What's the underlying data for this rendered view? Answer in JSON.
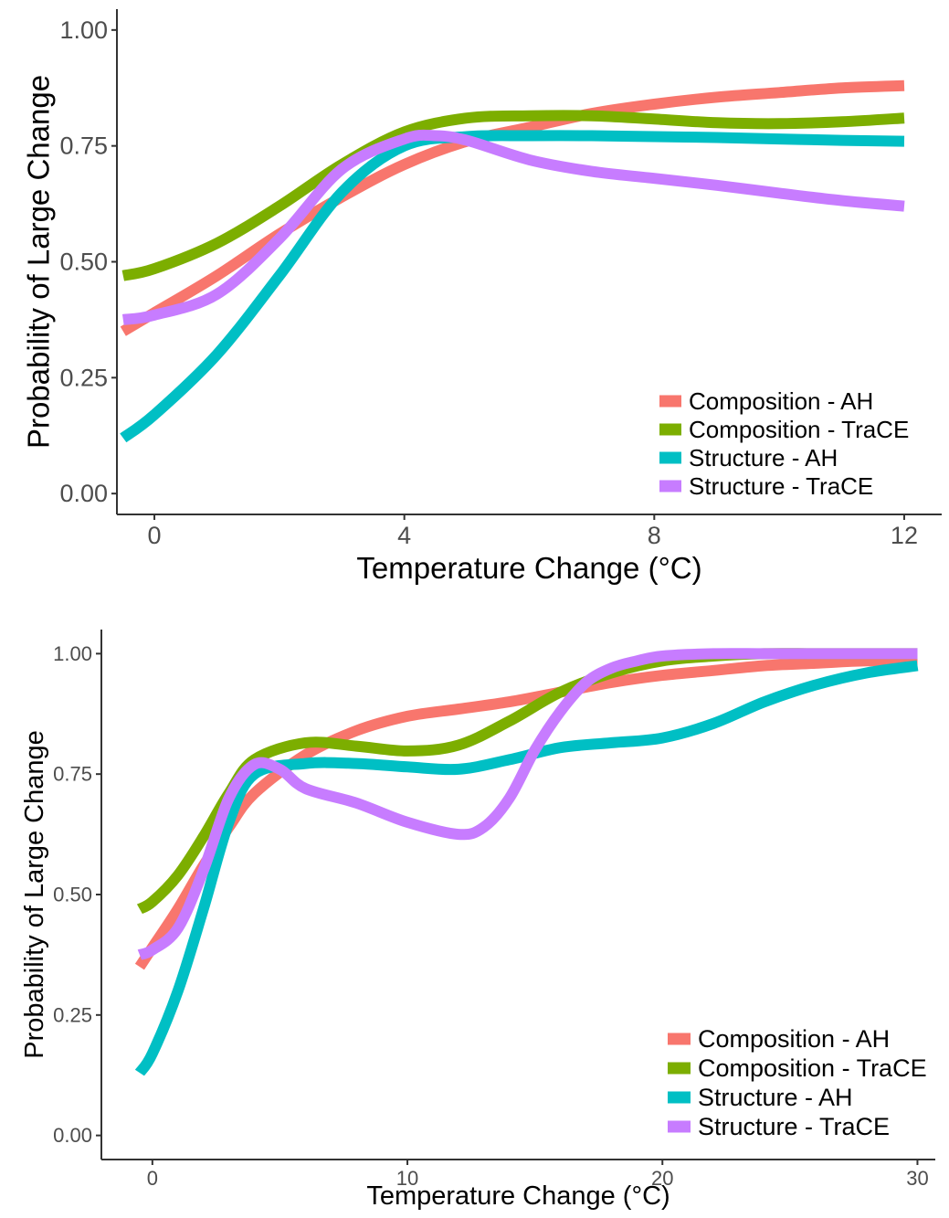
{
  "colors": {
    "composition_ah": "#F8766D",
    "composition_trace": "#7CAE00",
    "structure_ah": "#00BFC4",
    "structure_trace": "#C77CFF"
  },
  "chart_data": [
    {
      "type": "line",
      "xlabel": "Temperature Change (°C)",
      "ylabel": "Probability of Large Change",
      "xlim": [
        -0.6,
        12.6
      ],
      "ylim": [
        -0.045,
        1.045
      ],
      "xticks": [
        0,
        4,
        8,
        12
      ],
      "xtick_labels": [
        "0",
        "4",
        "8",
        "12"
      ],
      "yticks": [
        0,
        0.25,
        0.5,
        0.75,
        1
      ],
      "ytick_labels": [
        "0.00",
        "0.25",
        "0.50",
        "0.75",
        "1.00"
      ],
      "grid": false,
      "legend_position": "bottom-right",
      "series": [
        {
          "name": "Composition - AH",
          "color": "#F8766D",
          "x": [
            -0.5,
            0,
            1,
            2,
            3,
            4,
            5,
            6,
            7,
            8,
            9,
            10,
            11,
            12
          ],
          "y": [
            0.35,
            0.39,
            0.47,
            0.56,
            0.64,
            0.71,
            0.76,
            0.79,
            0.82,
            0.84,
            0.855,
            0.865,
            0.875,
            0.88
          ]
        },
        {
          "name": "Composition - TraCE",
          "color": "#7CAE00",
          "x": [
            -0.5,
            0,
            1,
            2,
            3,
            4,
            5,
            6,
            7,
            8,
            9,
            10,
            11,
            12
          ],
          "y": [
            0.47,
            0.485,
            0.54,
            0.62,
            0.71,
            0.78,
            0.81,
            0.815,
            0.815,
            0.808,
            0.8,
            0.798,
            0.802,
            0.81
          ]
        },
        {
          "name": "Structure - AH",
          "color": "#00BFC4",
          "x": [
            -0.5,
            0,
            1,
            2,
            3,
            4,
            5,
            6,
            7,
            8,
            9,
            10,
            11,
            12
          ],
          "y": [
            0.12,
            0.17,
            0.3,
            0.47,
            0.65,
            0.75,
            0.77,
            0.772,
            0.772,
            0.77,
            0.768,
            0.765,
            0.762,
            0.76
          ]
        },
        {
          "name": "Structure - TraCE",
          "color": "#C77CFF",
          "x": [
            -0.5,
            0,
            1,
            2,
            3,
            4,
            4.5,
            5,
            6,
            7,
            8,
            9,
            10,
            11,
            12
          ],
          "y": [
            0.375,
            0.385,
            0.43,
            0.55,
            0.7,
            0.765,
            0.772,
            0.762,
            0.72,
            0.695,
            0.68,
            0.665,
            0.648,
            0.632,
            0.62
          ]
        }
      ]
    },
    {
      "type": "line",
      "xlabel": "Temperature Change (°C)",
      "ylabel": "Probability of Large Change",
      "xlim": [
        -2,
        30.7
      ],
      "ylim": [
        -0.05,
        1.05
      ],
      "xticks": [
        0,
        10,
        20,
        30
      ],
      "xtick_labels": [
        "0",
        "10",
        "20",
        "30"
      ],
      "yticks": [
        0,
        0.25,
        0.5,
        0.75,
        1
      ],
      "ytick_labels": [
        "0.00",
        "0.25",
        "0.50",
        "0.75",
        "1.00"
      ],
      "grid": false,
      "legend_position": "bottom-right",
      "series": [
        {
          "name": "Composition - AH",
          "color": "#F8766D",
          "x": [
            -0.5,
            0,
            1,
            2,
            3,
            4,
            6,
            8,
            10,
            12,
            14,
            16,
            18,
            20,
            22,
            24,
            26,
            28,
            30
          ],
          "y": [
            0.35,
            0.39,
            0.47,
            0.56,
            0.64,
            0.71,
            0.79,
            0.84,
            0.87,
            0.885,
            0.9,
            0.92,
            0.94,
            0.955,
            0.965,
            0.975,
            0.98,
            0.985,
            0.985
          ]
        },
        {
          "name": "Composition - TraCE",
          "color": "#7CAE00",
          "x": [
            -0.5,
            0,
            1,
            2,
            3,
            4,
            6,
            8,
            10,
            12,
            14,
            16,
            18,
            20,
            22,
            24,
            26,
            28,
            30
          ],
          "y": [
            0.47,
            0.485,
            0.54,
            0.62,
            0.71,
            0.78,
            0.815,
            0.808,
            0.798,
            0.81,
            0.86,
            0.92,
            0.96,
            0.985,
            0.995,
            1,
            1,
            1,
            1
          ]
        },
        {
          "name": "Structure - AH",
          "color": "#00BFC4",
          "x": [
            -0.5,
            0,
            1,
            2,
            3,
            4,
            6,
            8,
            10,
            12,
            14,
            16,
            18,
            20,
            22,
            24,
            26,
            28,
            30
          ],
          "y": [
            0.13,
            0.17,
            0.3,
            0.47,
            0.65,
            0.75,
            0.772,
            0.772,
            0.765,
            0.76,
            0.78,
            0.805,
            0.815,
            0.825,
            0.855,
            0.9,
            0.935,
            0.96,
            0.975
          ]
        },
        {
          "name": "Structure - TraCE",
          "color": "#C77CFF",
          "x": [
            -0.5,
            0,
            1,
            2,
            3,
            4,
            5,
            6,
            8,
            10,
            12,
            13,
            14,
            15,
            16,
            17,
            18,
            19,
            20,
            22,
            24,
            26,
            28,
            30
          ],
          "y": [
            0.375,
            0.385,
            0.43,
            0.55,
            0.7,
            0.77,
            0.76,
            0.72,
            0.69,
            0.65,
            0.625,
            0.64,
            0.7,
            0.8,
            0.88,
            0.94,
            0.97,
            0.985,
            0.995,
            1,
            1,
            1,
            1,
            1
          ]
        }
      ]
    }
  ]
}
